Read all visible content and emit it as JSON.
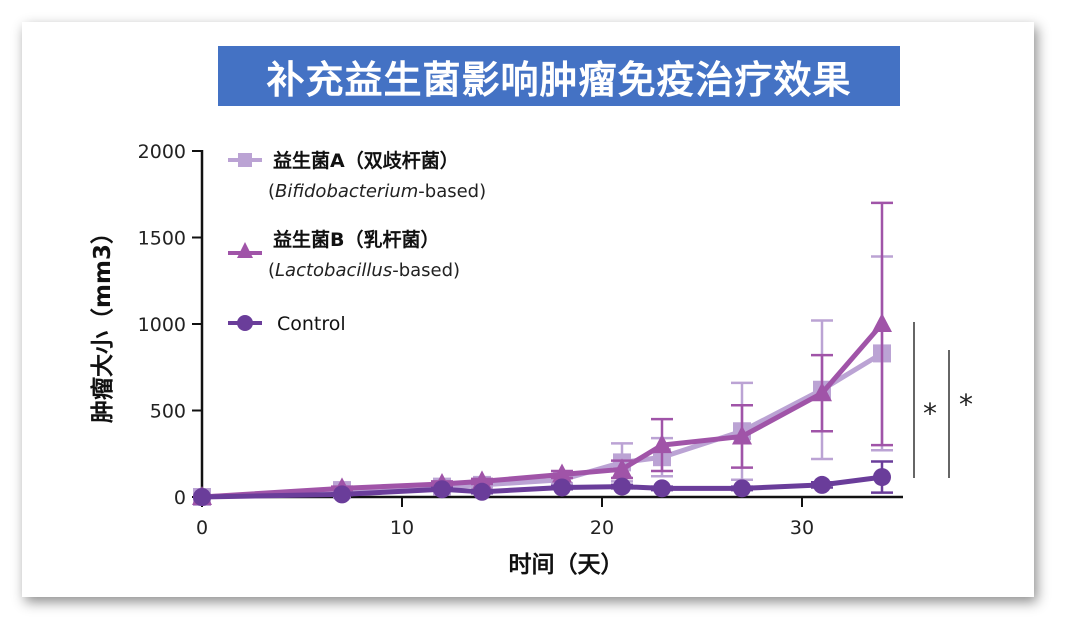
{
  "chart_data": {
    "type": "line",
    "title": "补充益生菌影响肿瘤免疫治疗效果",
    "xlabel": "时间（天）",
    "ylabel": "肿瘤大小（mm3）",
    "xlim": [
      0,
      35
    ],
    "ylim": [
      0,
      2000
    ],
    "xticks": [
      0,
      10,
      20,
      30
    ],
    "yticks": [
      0,
      500,
      1000,
      1500,
      2000
    ],
    "grid": false,
    "legend_position": "top-left",
    "series": [
      {
        "name": "益生菌A（双歧杆菌）",
        "name_sub_italic": "Bifidobacterium",
        "name_sub_suffix": "-based",
        "color": "#bba3d4",
        "marker": "square",
        "x": [
          0,
          7,
          12,
          14,
          18,
          21,
          23,
          27,
          31,
          34
        ],
        "y": [
          0,
          40,
          60,
          70,
          100,
          200,
          230,
          380,
          620,
          830
        ],
        "err": [
          0,
          10,
          15,
          15,
          20,
          110,
          110,
          280,
          400,
          560
        ]
      },
      {
        "name": "益生菌B（乳杆菌）",
        "name_sub_italic": "Lactobacillus",
        "name_sub_suffix": "-based",
        "color": "#a054a8",
        "marker": "triangle",
        "x": [
          0,
          7,
          12,
          14,
          18,
          21,
          23,
          27,
          31,
          34
        ],
        "y": [
          0,
          50,
          75,
          90,
          130,
          160,
          300,
          350,
          600,
          1000
        ],
        "err": [
          0,
          10,
          15,
          15,
          20,
          50,
          150,
          180,
          220,
          700
        ]
      },
      {
        "name": "Control",
        "color": "#6a3d9a",
        "marker": "circle",
        "x": [
          0,
          7,
          12,
          14,
          18,
          21,
          23,
          27,
          31,
          34
        ],
        "y": [
          0,
          15,
          45,
          30,
          55,
          60,
          50,
          50,
          70,
          115
        ],
        "err": [
          0,
          5,
          8,
          8,
          10,
          10,
          10,
          10,
          15,
          90
        ]
      }
    ],
    "annotations": [
      "*",
      "*"
    ]
  }
}
